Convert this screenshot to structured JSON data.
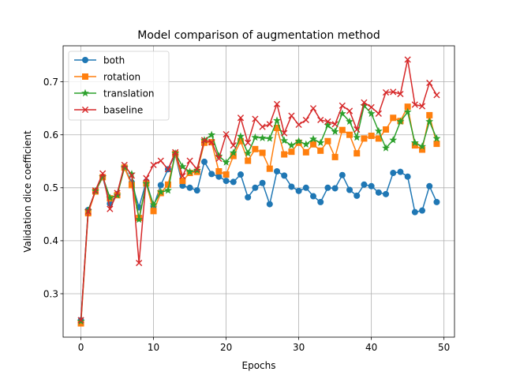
{
  "chart_data": {
    "type": "line",
    "title": "Model comparison of augmentation method",
    "xlabel": "Epochs",
    "ylabel": "Validation dice coefficient",
    "xlim": [
      -2.45,
      51.45
    ],
    "ylim": [
      0.218,
      0.768
    ],
    "xticks": [
      0,
      10,
      20,
      30,
      40,
      50
    ],
    "yticks": [
      0.3,
      0.4,
      0.5,
      0.6,
      0.7
    ],
    "grid": true,
    "legend_position": "top-left",
    "x": [
      0,
      1,
      2,
      3,
      4,
      5,
      6,
      7,
      8,
      9,
      10,
      11,
      12,
      13,
      14,
      15,
      16,
      17,
      18,
      19,
      20,
      21,
      22,
      23,
      24,
      25,
      26,
      27,
      28,
      29,
      30,
      31,
      32,
      33,
      34,
      35,
      36,
      37,
      38,
      39,
      40,
      41,
      42,
      43,
      44,
      45,
      46,
      47,
      48,
      49
    ],
    "series": [
      {
        "name": "both",
        "color": "#1f77b4",
        "marker": "circle",
        "values": [
          0.25,
          0.458,
          0.493,
          0.52,
          0.47,
          0.488,
          0.538,
          0.51,
          0.463,
          0.512,
          0.465,
          0.505,
          0.535,
          0.563,
          0.504,
          0.5,
          0.495,
          0.549,
          0.526,
          0.521,
          0.513,
          0.511,
          0.525,
          0.482,
          0.5,
          0.509,
          0.469,
          0.531,
          0.523,
          0.502,
          0.494,
          0.5,
          0.484,
          0.473,
          0.5,
          0.499,
          0.524,
          0.496,
          0.485,
          0.506,
          0.503,
          0.491,
          0.488,
          0.528,
          0.53,
          0.521,
          0.454,
          0.457,
          0.503,
          0.473
        ]
      },
      {
        "name": "rotation",
        "color": "#ff7f0e",
        "marker": "square",
        "values": [
          0.244,
          0.452,
          0.493,
          0.52,
          0.48,
          0.486,
          0.538,
          0.505,
          0.443,
          0.508,
          0.456,
          0.49,
          0.506,
          0.564,
          0.513,
          0.528,
          0.53,
          0.585,
          0.586,
          0.531,
          0.525,
          0.56,
          0.588,
          0.551,
          0.573,
          0.566,
          0.536,
          0.613,
          0.563,
          0.568,
          0.585,
          0.567,
          0.582,
          0.57,
          0.588,
          0.558,
          0.609,
          0.6,
          0.565,
          0.593,
          0.598,
          0.593,
          0.61,
          0.632,
          0.626,
          0.653,
          0.58,
          0.572,
          0.637,
          0.583
        ]
      },
      {
        "name": "translation",
        "color": "#2ca02c",
        "marker": "star",
        "values": [
          0.248,
          0.457,
          0.494,
          0.521,
          0.481,
          0.486,
          0.539,
          0.526,
          0.44,
          0.508,
          0.468,
          0.492,
          0.495,
          0.565,
          0.54,
          0.53,
          0.533,
          0.59,
          0.6,
          0.56,
          0.548,
          0.566,
          0.597,
          0.565,
          0.595,
          0.594,
          0.593,
          0.627,
          0.589,
          0.58,
          0.588,
          0.582,
          0.592,
          0.585,
          0.618,
          0.606,
          0.64,
          0.625,
          0.595,
          0.655,
          0.64,
          0.607,
          0.575,
          0.59,
          0.625,
          0.643,
          0.585,
          0.578,
          0.625,
          0.593
        ]
      },
      {
        "name": "baseline",
        "color": "#d62728",
        "marker": "x",
        "values": [
          0.25,
          0.455,
          0.495,
          0.527,
          0.46,
          0.49,
          0.543,
          0.523,
          0.358,
          0.518,
          0.543,
          0.551,
          0.535,
          0.567,
          0.522,
          0.551,
          0.535,
          0.59,
          0.586,
          0.555,
          0.601,
          0.58,
          0.632,
          0.585,
          0.63,
          0.615,
          0.62,
          0.658,
          0.603,
          0.636,
          0.619,
          0.628,
          0.65,
          0.628,
          0.625,
          0.62,
          0.655,
          0.645,
          0.61,
          0.661,
          0.652,
          0.64,
          0.68,
          0.681,
          0.677,
          0.742,
          0.657,
          0.654,
          0.698,
          0.675
        ]
      }
    ]
  }
}
